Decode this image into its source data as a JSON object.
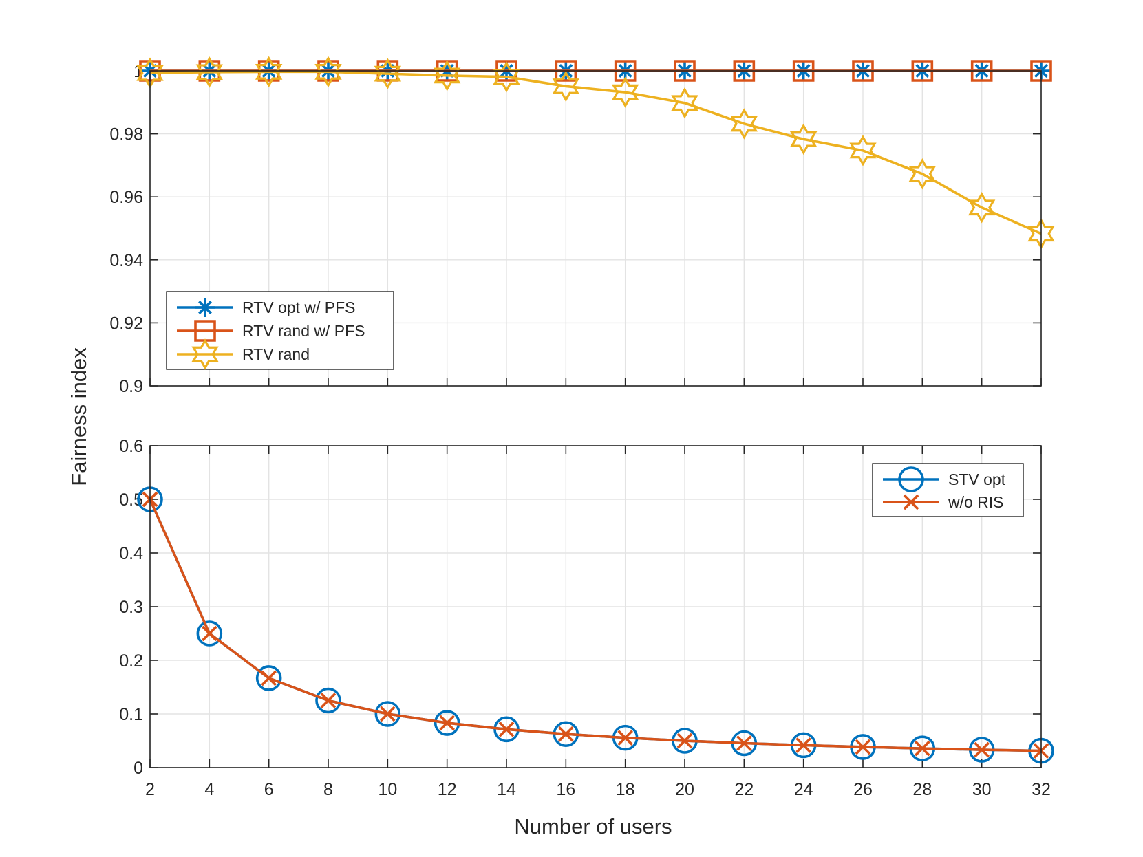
{
  "chart_data": [
    {
      "type": "line",
      "title": "",
      "xlabel": "",
      "ylabel": "Fairness index",
      "x": [
        2,
        4,
        6,
        8,
        10,
        12,
        14,
        16,
        18,
        20,
        22,
        24,
        26,
        28,
        30,
        32
      ],
      "xlim": [
        2,
        32
      ],
      "ylim": [
        0.9,
        1.0
      ],
      "yticks": [
        "0.9",
        "0.92",
        "0.94",
        "0.96",
        "0.98",
        "1"
      ],
      "grid": true,
      "legend_position": "bottom-left",
      "series": [
        {
          "name": "RTV opt w/ PFS",
          "color": "#0072BD",
          "marker": "asterisk",
          "values": [
            1,
            1,
            1,
            1,
            1,
            1,
            1,
            1,
            1,
            1,
            1,
            1,
            1,
            1,
            1,
            1
          ]
        },
        {
          "name": "RTV rand w/ PFS",
          "color": "#D95319",
          "marker": "square",
          "values": [
            1,
            1,
            1,
            1,
            1,
            1,
            1,
            1,
            1,
            1,
            1,
            1,
            1,
            1,
            1,
            1
          ]
        },
        {
          "name": "RTV rand",
          "color": "#EDB120",
          "marker": "hexagram",
          "values": [
            0.9993,
            0.9996,
            0.9997,
            0.9997,
            0.9991,
            0.9985,
            0.9981,
            0.9951,
            0.9932,
            0.9898,
            0.9832,
            0.9783,
            0.9747,
            0.9673,
            0.9566,
            0.9483
          ]
        }
      ]
    },
    {
      "type": "line",
      "title": "",
      "xlabel": "Number of users",
      "ylabel": "",
      "x": [
        2,
        4,
        6,
        8,
        10,
        12,
        14,
        16,
        18,
        20,
        22,
        24,
        26,
        28,
        30,
        32
      ],
      "xlim": [
        2,
        32
      ],
      "ylim": [
        0,
        0.6
      ],
      "xticks": [
        "2",
        "4",
        "6",
        "8",
        "10",
        "12",
        "14",
        "16",
        "18",
        "20",
        "22",
        "24",
        "26",
        "28",
        "30",
        "32"
      ],
      "yticks": [
        "0",
        "0.1",
        "0.2",
        "0.3",
        "0.4",
        "0.5",
        "0.6"
      ],
      "grid": true,
      "legend_position": "top-right",
      "series": [
        {
          "name": "STV opt",
          "color": "#0072BD",
          "marker": "circle",
          "values": [
            0.5,
            0.25,
            0.1667,
            0.125,
            0.1,
            0.0833,
            0.0714,
            0.0625,
            0.0556,
            0.05,
            0.0455,
            0.0417,
            0.0385,
            0.0357,
            0.0333,
            0.0313
          ]
        },
        {
          "name": "w/o RIS",
          "color": "#D95319",
          "marker": "x",
          "values": [
            0.5,
            0.25,
            0.1667,
            0.125,
            0.1,
            0.0833,
            0.0714,
            0.0625,
            0.0556,
            0.05,
            0.0455,
            0.0417,
            0.0385,
            0.0357,
            0.0333,
            0.0313
          ]
        }
      ]
    }
  ]
}
